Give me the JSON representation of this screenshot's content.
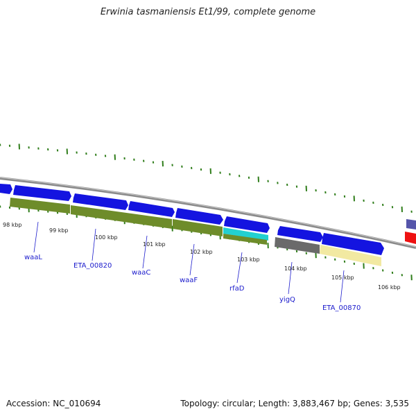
{
  "title": "Erwinia tasmaniensis Et1/99, complete genome",
  "accession": "Accession: NC_010694",
  "topology": "Topology: circular; Length: 3,883,467 bp; Genes: 3,535",
  "colors": {
    "gene_blue": "#1414e0",
    "green_feature": "#6e8c2a",
    "cyan_feature": "#22d0d0",
    "gray_feature": "#6a6a6a",
    "pale_yellow_feature": "#f2e9a2",
    "backbone": "#8a8a8a",
    "tick_green": "#2f7d1a",
    "label_blue": "#1a1acc",
    "red_feature": "#ee1111",
    "slate_feature": "#5555aa"
  },
  "kbp_labels": [
    "98 kbp",
    "99 kbp",
    "100 kbp",
    "101 kbp",
    "102 kbp",
    "103 kbp",
    "104 kbp",
    "105 kbp",
    "106 kbp"
  ],
  "gene_labels": [
    "waaL",
    "ETA_00820",
    "waaC",
    "waaF",
    "rfaD",
    "yigQ",
    "ETA_00870"
  ]
}
